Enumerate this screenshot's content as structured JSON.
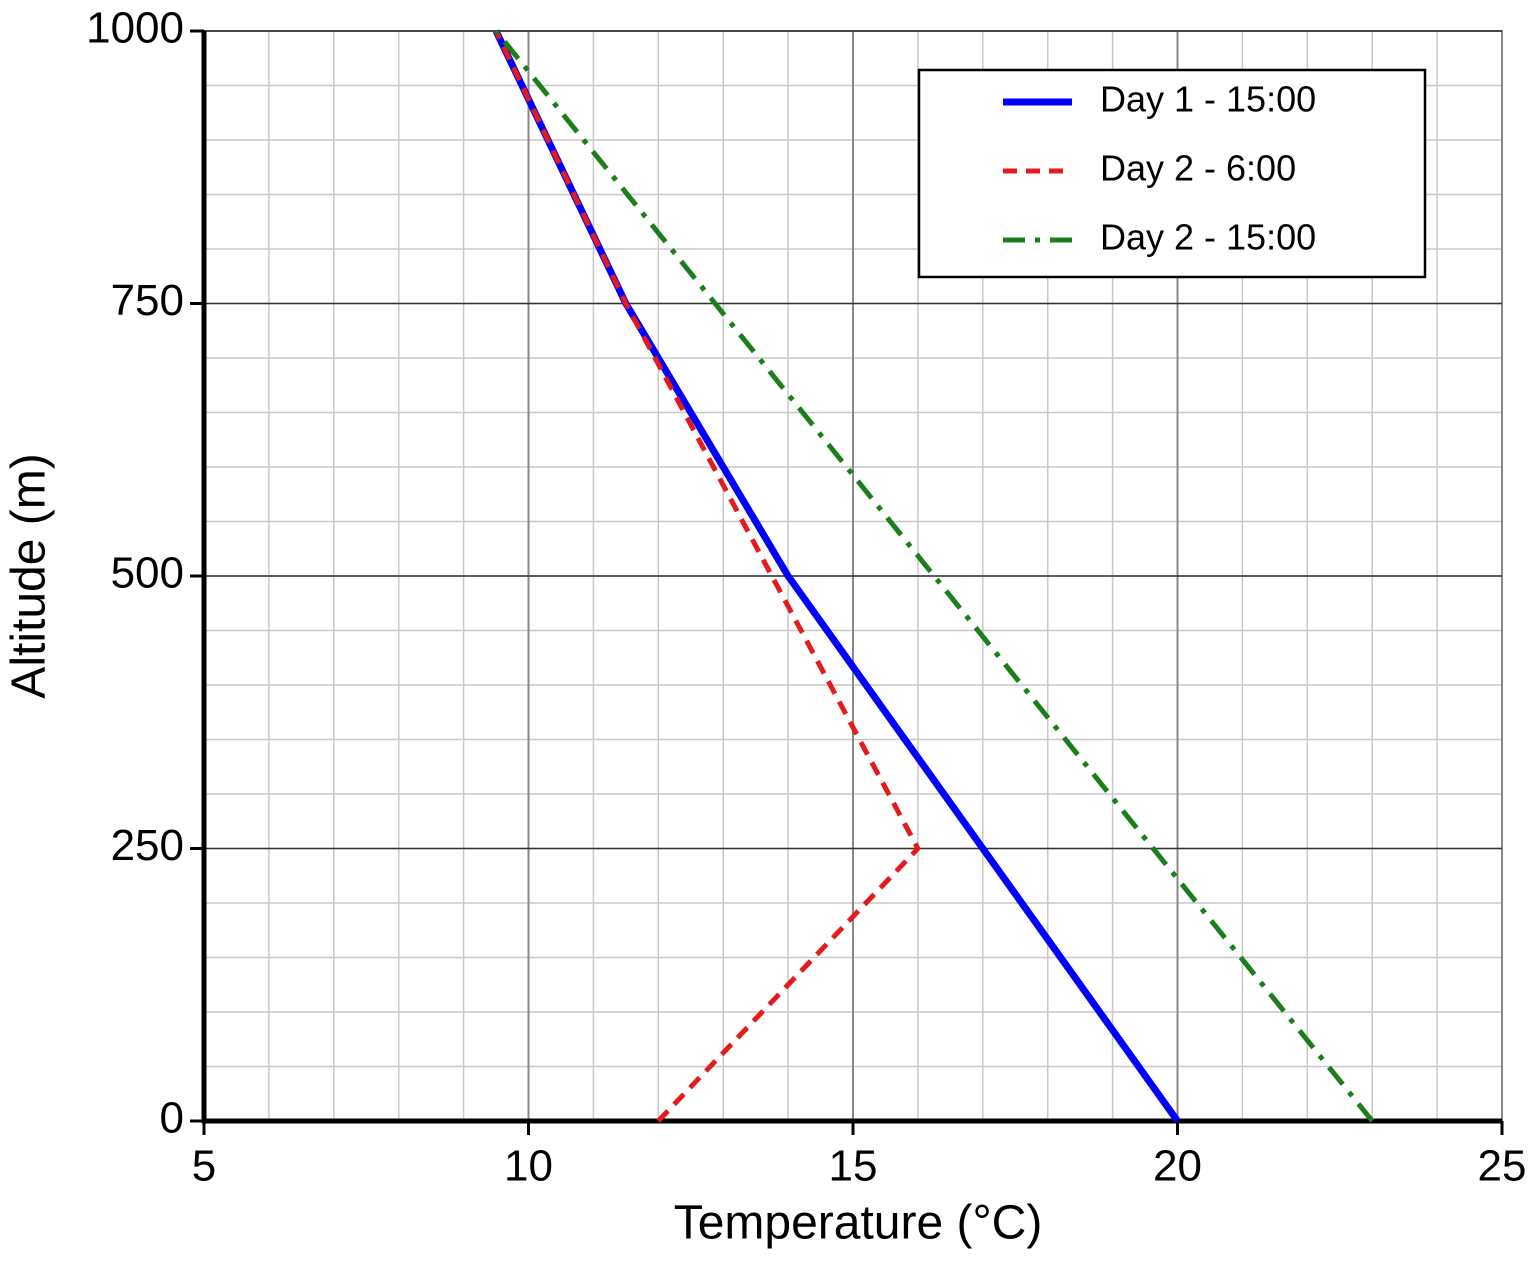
{
  "chart_data": {
    "type": "line",
    "xlabel": "Temperature (°C)",
    "ylabel": "Altitude (m)",
    "xlim": [
      5,
      25
    ],
    "xticks": [
      5,
      10,
      15,
      20,
      25
    ],
    "ylim": [
      0,
      1000
    ],
    "yticks": [
      0,
      250,
      500,
      750,
      1000
    ],
    "grid": true,
    "minor_grid": {
      "x": 1,
      "y": 50
    },
    "legend": "upper right",
    "series": [
      {
        "name": "Day 1 - 15:00",
        "color": "#0000ff",
        "linestyle": "solid",
        "x": [
          20,
          17,
          14,
          11.5,
          9.5
        ],
        "values": [
          0,
          250,
          500,
          750,
          1000
        ]
      },
      {
        "name": "Day 2 - 6:00",
        "color": "#e41a1c",
        "linestyle": "dashed",
        "x": [
          12,
          16,
          11.5,
          9.5
        ],
        "values": [
          0,
          250,
          750,
          1000
        ]
      },
      {
        "name": "Day 2 - 15:00",
        "color": "#1a7f1a",
        "linestyle": "dashdot",
        "x": [
          23,
          9.5
        ],
        "values": [
          0,
          1000
        ]
      }
    ]
  }
}
